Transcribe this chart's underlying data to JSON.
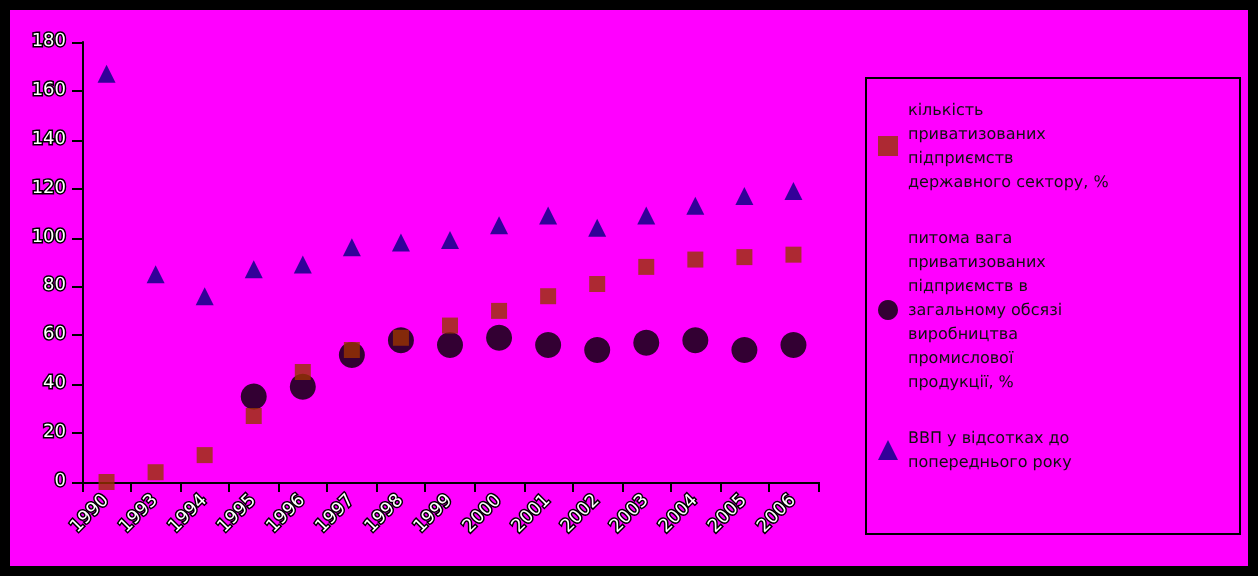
{
  "chart_data": {
    "type": "scatter",
    "categories": [
      "1990",
      "1993",
      "1994",
      "1995",
      "1996",
      "1997",
      "1998",
      "1999",
      "2000",
      "2001",
      "2002",
      "2003",
      "2004",
      "2005",
      "2006"
    ],
    "series": [
      {
        "name": "кількість приватизованих підприємств державного сектору, %",
        "color": "#993300",
        "marker": "square",
        "values": [
          0,
          4,
          11,
          27,
          45,
          54,
          59,
          64,
          70,
          76,
          81,
          88,
          91,
          92,
          93
        ]
      },
      {
        "name": "питома вага приватизованих підприємств в загальному обсязі виробництва промислової продукції, %",
        "color": "#000000",
        "marker": "circle",
        "values": [
          null,
          null,
          null,
          35,
          39,
          52,
          58,
          56,
          59,
          56,
          54,
          57,
          58,
          54,
          56
        ]
      },
      {
        "name": "ВВП у відсотках до попереднього року",
        "color": "#000080",
        "marker": "triangle",
        "values": [
          167,
          85,
          76,
          87,
          89,
          96,
          98,
          99,
          105,
          109,
          104,
          109,
          113,
          117,
          119
        ]
      }
    ],
    "ylim": [
      0,
      180
    ],
    "yticks": [
      0,
      20,
      40,
      60,
      80,
      100,
      120,
      140,
      160,
      180
    ],
    "grid": false,
    "legend": "right"
  }
}
